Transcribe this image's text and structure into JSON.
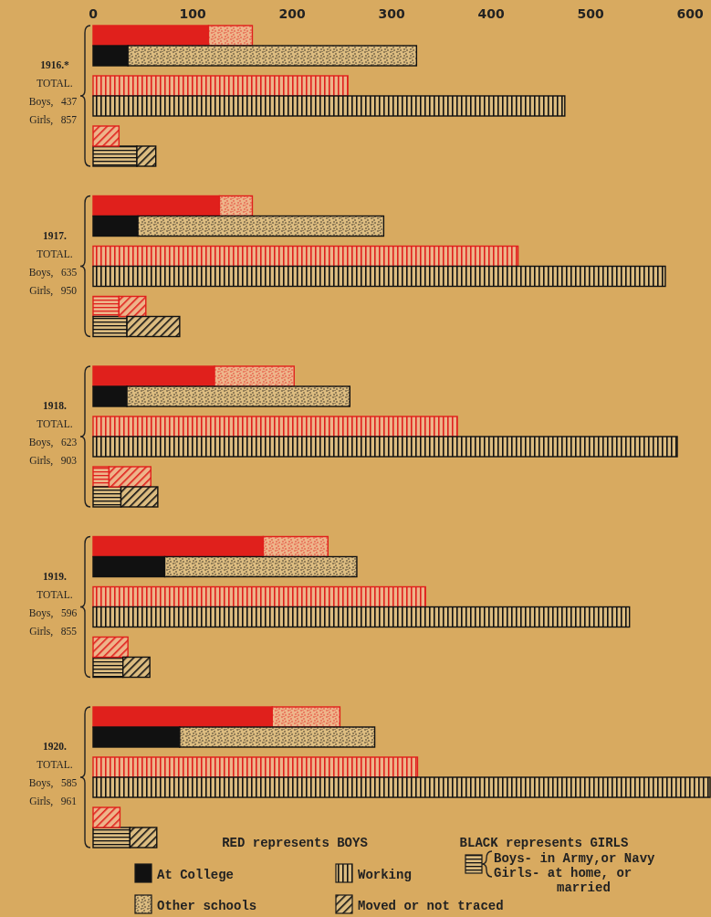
{
  "chart_data": {
    "type": "bar",
    "orientation": "horizontal",
    "stacked": true,
    "legend": "bottom",
    "grid": false,
    "categories": [
      null,
      null,
      null,
      null,
      null,
      null,
      null,
      null,
      null,
      null,
      null,
      null,
      null,
      null,
      null,
      null,
      null,
      null,
      null,
      null,
      null,
      null,
      null,
      null,
      null,
      null,
      null,
      null,
      null,
      null
    ],
    "xlim": [
      0,
      620
    ],
    "xticks": [
      0,
      100,
      200,
      300,
      400,
      500,
      600
    ],
    "annotations": [
      "1916.*\nTOTAL.\nBoys,   437\nGirls,   857",
      "1917.\nTOTAL.\nBoys,   635\nGirls,   950",
      "1918.\nTOTAL.\nBoys,   623\nGirls,   903",
      "1919.\nTOTAL.\nBoys,   596\nGirls,   855",
      "1920.\nTOTAL.\nBoys,   585\nGirls,   961",
      "RED represents BOYS",
      "BLACK represents GIRLS"
    ],
    "series": [
      {
        "name": "At College",
        "color": "#111111",
        "values": [
          116,
          35,
          null,
          null,
          null,
          null,
          127,
          45,
          null,
          null,
          null,
          null,
          122,
          34,
          null,
          null,
          null,
          null,
          171,
          72,
          null,
          null,
          null,
          null,
          180,
          87,
          null,
          null,
          null,
          null
        ],
        "colors": [
          "#e0201c",
          "#111111",
          null,
          null,
          null,
          null,
          "#e0201c",
          "#111111",
          null,
          null,
          null,
          null,
          "#e0201c",
          "#111111",
          null,
          null,
          null,
          null,
          "#e0201c",
          "#111111",
          null,
          null,
          null,
          null,
          "#e0201c",
          "#111111",
          null,
          null,
          null,
          null
        ]
      },
      {
        "name": "Other schools",
        "color": "#111111",
        "values": [
          44,
          290,
          null,
          null,
          null,
          null,
          33,
          247,
          null,
          null,
          null,
          null,
          80,
          224,
          null,
          null,
          null,
          null,
          65,
          193,
          null,
          null,
          null,
          null,
          68,
          196,
          null,
          null,
          null,
          null
        ],
        "colors": [
          "#e0201c",
          "#111111",
          null,
          null,
          null,
          null,
          "#e0201c",
          "#111111",
          null,
          null,
          null,
          null,
          "#e0201c",
          "#111111",
          null,
          null,
          null,
          null,
          "#e0201c",
          "#111111",
          null,
          null,
          null,
          null,
          "#e0201c",
          "#111111",
          null,
          null,
          null,
          null
        ]
      },
      {
        "name": "Working",
        "color": "#111111",
        "values": [
          null,
          null,
          256,
          474,
          null,
          null,
          null,
          null,
          427,
          575,
          null,
          null,
          null,
          null,
          366,
          587,
          null,
          null,
          null,
          null,
          334,
          539,
          null,
          null,
          null,
          null,
          326,
          620,
          null,
          null
        ],
        "colors": [
          null,
          null,
          "#e0201c",
          "#111111",
          null,
          null,
          null,
          null,
          "#e0201c",
          "#111111",
          null,
          null,
          null,
          null,
          "#e0201c",
          "#111111",
          null,
          null,
          null,
          null,
          "#e0201c",
          "#111111",
          null,
          null,
          null,
          null,
          "#e0201c",
          "#111111",
          null,
          null
        ]
      },
      {
        "name": "Boys- in Army,or Navy\nGirls- at home, or\nmarried",
        "color": "#111111",
        "values": [
          null,
          null,
          null,
          null,
          null,
          44,
          null,
          null,
          null,
          null,
          26,
          34,
          null,
          null,
          null,
          null,
          16,
          28,
          null,
          null,
          null,
          null,
          null,
          30,
          null,
          null,
          null,
          null,
          null,
          37
        ],
        "colors": [
          null,
          null,
          null,
          null,
          null,
          "#111111",
          null,
          null,
          null,
          null,
          "#e0201c",
          "#111111",
          null,
          null,
          null,
          null,
          "#e0201c",
          "#111111",
          null,
          null,
          null,
          null,
          null,
          "#111111",
          null,
          null,
          null,
          null,
          null,
          "#111111"
        ]
      },
      {
        "name": "Moved or not traced",
        "color": "#111111",
        "values": [
          null,
          null,
          null,
          null,
          26,
          19,
          null,
          null,
          null,
          null,
          27,
          53,
          null,
          null,
          null,
          null,
          42,
          37,
          null,
          null,
          null,
          null,
          35,
          27,
          null,
          null,
          null,
          null,
          27,
          27
        ],
        "colors": [
          null,
          null,
          null,
          null,
          "#e0201c",
          "#111111",
          null,
          null,
          null,
          null,
          "#e0201c",
          "#111111",
          null,
          null,
          null,
          null,
          "#e0201c",
          "#111111",
          null,
          null,
          null,
          null,
          "#e0201c",
          "#111111",
          null,
          null,
          null,
          null,
          "#e0201c",
          "#111111"
        ]
      }
    ]
  }
}
